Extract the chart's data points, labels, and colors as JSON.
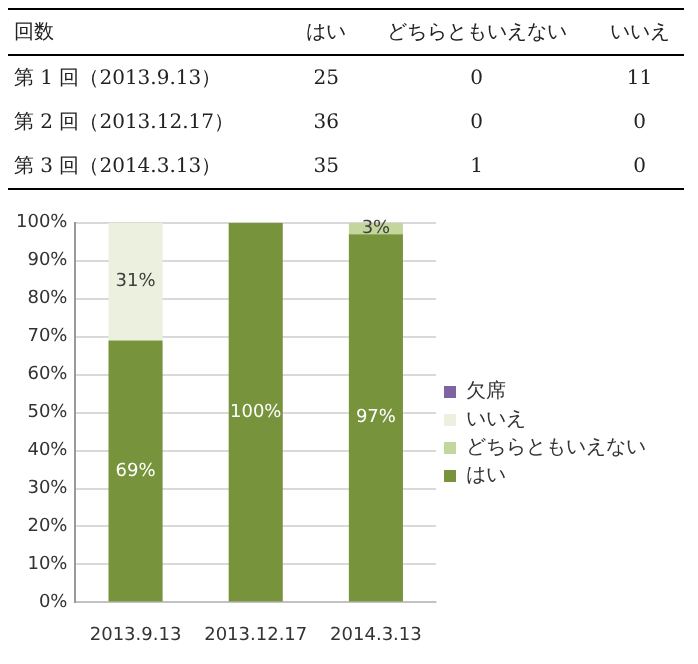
{
  "chart_data": {
    "type": "bar",
    "stacked": true,
    "categories": [
      "2013.9.13",
      "2013.12.17",
      "2014.3.13"
    ],
    "series": [
      {
        "name": "はい",
        "color": "#77933c",
        "values": [
          69,
          100,
          97
        ],
        "value_labels": [
          "69%",
          "100%",
          "97%"
        ]
      },
      {
        "name": "どちらともいえない",
        "color": "#c3d69b",
        "values": [
          0,
          0,
          3
        ],
        "value_labels": [
          null,
          null,
          "3%"
        ]
      },
      {
        "name": "いいえ",
        "color": "#ebf1de",
        "values": [
          31,
          0,
          0
        ],
        "value_labels": [
          "31%",
          null,
          null
        ]
      },
      {
        "name": "欠席",
        "color": "#8064a2",
        "values": [
          0,
          0,
          0
        ],
        "value_labels": [
          null,
          null,
          null
        ]
      }
    ],
    "ylim": [
      0,
      100
    ],
    "yticks": [
      {
        "value": 0,
        "label": "0%"
      },
      {
        "value": 10,
        "label": "10%"
      },
      {
        "value": 20,
        "label": "20%"
      },
      {
        "value": 30,
        "label": "30%"
      },
      {
        "value": 40,
        "label": "40%"
      },
      {
        "value": 50,
        "label": "50%"
      },
      {
        "value": 60,
        "label": "60%"
      },
      {
        "value": 70,
        "label": "70%"
      },
      {
        "value": 80,
        "label": "80%"
      },
      {
        "value": 90,
        "label": "90%"
      },
      {
        "value": 100,
        "label": "100%"
      }
    ],
    "grid": "y",
    "legend": "right",
    "annotations": [
      "回数",
      "はい",
      "どちらともいえない",
      "いいえ",
      "第 1 回（2013.9.13）",
      "25",
      "0",
      "11",
      "第 2 回（2013.12.17）",
      "36",
      "0",
      "0",
      "第 3 回（2014.3.13）",
      "35",
      "1",
      "0"
    ]
  }
}
